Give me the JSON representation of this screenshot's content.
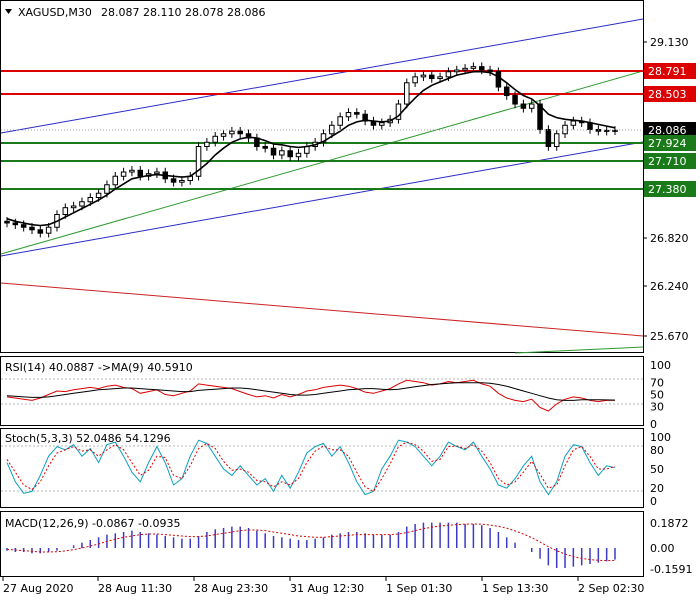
{
  "header": {
    "symbol": "XAGUSD,M30",
    "ohlc": "28.087 28.110 28.078 28.086"
  },
  "colors": {
    "channel_blue": "#2a2ac8",
    "channel_green": "#2e9a2e",
    "channel_red": "#cc2222",
    "resistance": "#dd0000",
    "support": "#1a7a1a",
    "price_tag_bg": "#000000",
    "candle": "#000000",
    "ma": "#000000",
    "rsi": "#dd0000",
    "stoch_main": "#0aa0c0",
    "stoch_signal": "#dd0000",
    "macd_hist": "#3a3ac8",
    "macd_signal": "#dd0000"
  },
  "chart_data": [
    {
      "type": "candlestick",
      "title": "XAGUSD,M30",
      "ylim": [
        25.55,
        29.35
      ],
      "y_ticks": [
        "29.130",
        "28.5",
        "28.086",
        "26.820",
        "26.240",
        "25.670"
      ],
      "x_tick_labels": [
        "27 Aug 2020",
        "28 Aug 11:30",
        "28 Aug 23:30",
        "31 Aug 12:30",
        "1 Sep 01:30",
        "1 Sep 13:30",
        "2 Sep 02:30"
      ],
      "current_price": "28.086",
      "horizontal_levels": [
        {
          "value": 28.791,
          "label": "28.791",
          "kind": "resistance"
        },
        {
          "value": 28.503,
          "label": "28.503",
          "kind": "resistance"
        },
        {
          "value": 27.924,
          "label": "27.924",
          "kind": "support"
        },
        {
          "value": 27.71,
          "label": "27.710",
          "kind": "support"
        },
        {
          "value": 27.38,
          "label": "27.380",
          "kind": "support"
        }
      ],
      "close_series": [
        27.0,
        26.98,
        26.95,
        26.92,
        26.88,
        26.95,
        27.1,
        27.18,
        27.2,
        27.25,
        27.3,
        27.35,
        27.45,
        27.55,
        27.6,
        27.62,
        27.55,
        27.58,
        27.6,
        27.52,
        27.48,
        27.5,
        27.55,
        27.9,
        27.95,
        28.02,
        28.05,
        28.08,
        28.05,
        28.0,
        27.9,
        27.88,
        27.8,
        27.85,
        27.78,
        27.82,
        27.9,
        27.95,
        28.05,
        28.15,
        28.25,
        28.3,
        28.28,
        28.2,
        28.15,
        28.18,
        28.22,
        28.4,
        28.65,
        28.72,
        28.74,
        28.7,
        28.72,
        28.78,
        28.8,
        28.82,
        28.84,
        28.8,
        28.78,
        28.6,
        28.5,
        28.4,
        28.35,
        28.4,
        28.1,
        27.9,
        28.05,
        28.15,
        28.2,
        28.18,
        28.1,
        28.08,
        28.09,
        28.086
      ],
      "series": [
        {
          "name": "MA",
          "values": [
            27.05,
            27.02,
            27.0,
            26.98,
            26.97,
            26.98,
            27.02,
            27.07,
            27.12,
            27.17,
            27.22,
            27.27,
            27.33,
            27.4,
            27.46,
            27.52,
            27.54,
            27.56,
            27.57,
            27.56,
            27.55,
            27.54,
            27.55,
            27.62,
            27.7,
            27.8,
            27.88,
            27.95,
            27.99,
            28.01,
            28.0,
            27.97,
            27.93,
            27.92,
            27.9,
            27.89,
            27.9,
            27.92,
            27.96,
            28.02,
            28.08,
            28.15,
            28.19,
            28.21,
            28.2,
            28.19,
            28.2,
            28.26,
            28.37,
            28.47,
            28.56,
            28.62,
            28.66,
            28.7,
            28.74,
            28.76,
            28.78,
            28.78,
            28.77,
            28.72,
            28.65,
            28.57,
            28.5,
            28.46,
            28.38,
            28.28,
            28.24,
            28.22,
            28.21,
            28.2,
            28.18,
            28.16,
            28.14,
            28.12
          ]
        }
      ]
    },
    {
      "type": "line",
      "title": "RSI(14) 40.0887  ->MA(9) 40.5910",
      "ylim": [
        0,
        100
      ],
      "y_ticks": [
        "100",
        "70",
        "50",
        "30",
        "0"
      ],
      "series": [
        {
          "name": "RSI(14)",
          "values": [
            46,
            44,
            42,
            40,
            44,
            50,
            56,
            55,
            58,
            60,
            62,
            60,
            64,
            66,
            62,
            60,
            52,
            55,
            58,
            50,
            48,
            52,
            56,
            68,
            66,
            64,
            62,
            60,
            55,
            50,
            46,
            48,
            44,
            50,
            46,
            50,
            56,
            58,
            62,
            64,
            66,
            64,
            60,
            54,
            52,
            56,
            60,
            68,
            74,
            72,
            70,
            66,
            68,
            72,
            70,
            72,
            74,
            68,
            64,
            52,
            44,
            40,
            38,
            42,
            28,
            22,
            34,
            42,
            46,
            44,
            40,
            38,
            40,
            40.09
          ]
        },
        {
          "name": "MA(9)",
          "values": [
            48,
            47,
            46,
            45,
            45,
            46,
            48,
            50,
            52,
            54,
            56,
            58,
            59,
            60,
            61,
            61,
            60,
            59,
            58,
            57,
            56,
            55,
            55,
            57,
            58,
            59,
            60,
            61,
            61,
            60,
            58,
            56,
            54,
            52,
            50,
            49,
            49,
            50,
            52,
            54,
            56,
            58,
            59,
            60,
            60,
            59,
            58,
            59,
            61,
            63,
            65,
            67,
            68,
            69,
            70,
            70,
            70,
            70,
            69,
            67,
            64,
            60,
            56,
            52,
            48,
            44,
            41,
            40,
            40,
            41,
            41,
            41,
            40.8,
            40.59
          ]
        }
      ]
    },
    {
      "type": "line",
      "title": "Stoch(5,3,3) 52.0486 54.1296",
      "ylim": [
        0,
        100
      ],
      "y_ticks": [
        "100",
        "80",
        "50",
        "20",
        "0"
      ],
      "series": [
        {
          "name": "Main",
          "values": [
            60,
            30,
            12,
            15,
            40,
            70,
            85,
            80,
            88,
            70,
            82,
            60,
            88,
            92,
            70,
            45,
            30,
            60,
            85,
            60,
            25,
            35,
            70,
            95,
            90,
            70,
            50,
            40,
            55,
            40,
            25,
            35,
            15,
            40,
            20,
            45,
            75,
            85,
            90,
            70,
            85,
            60,
            30,
            10,
            15,
            50,
            70,
            95,
            92,
            85,
            70,
            55,
            70,
            92,
            85,
            80,
            92,
            70,
            50,
            25,
            20,
            35,
            55,
            70,
            30,
            10,
            30,
            70,
            88,
            85,
            60,
            40,
            55,
            52.05
          ]
        },
        {
          "name": "Signal",
          "values": [
            65,
            45,
            25,
            18,
            30,
            55,
            75,
            80,
            85,
            78,
            80,
            70,
            80,
            88,
            80,
            60,
            40,
            48,
            70,
            68,
            40,
            35,
            55,
            82,
            90,
            82,
            62,
            48,
            50,
            45,
            32,
            30,
            22,
            30,
            25,
            35,
            60,
            78,
            86,
            80,
            80,
            70,
            45,
            22,
            15,
            35,
            58,
            85,
            92,
            88,
            78,
            62,
            65,
            85,
            86,
            82,
            88,
            78,
            60,
            35,
            25,
            30,
            45,
            62,
            42,
            20,
            25,
            55,
            80,
            85,
            70,
            50,
            50,
            54.13
          ]
        }
      ]
    },
    {
      "type": "bar",
      "title": "MACD(12,26,9) -0.0867 -0.0935",
      "ylim": [
        -0.2,
        0.21
      ],
      "y_ticks": [
        "0.1872",
        "0.00",
        "-0.1591"
      ],
      "series": [
        {
          "name": "MACD",
          "values": [
            -0.02,
            -0.03,
            -0.03,
            -0.04,
            -0.04,
            -0.03,
            -0.02,
            0.0,
            0.02,
            0.04,
            0.06,
            0.08,
            0.1,
            0.11,
            0.12,
            0.13,
            0.12,
            0.11,
            0.1,
            0.09,
            0.08,
            0.07,
            0.07,
            0.09,
            0.12,
            0.14,
            0.15,
            0.16,
            0.16,
            0.15,
            0.13,
            0.11,
            0.09,
            0.08,
            0.07,
            0.06,
            0.06,
            0.07,
            0.08,
            0.1,
            0.11,
            0.12,
            0.12,
            0.11,
            0.1,
            0.1,
            0.1,
            0.12,
            0.16,
            0.18,
            0.19,
            0.19,
            0.19,
            0.19,
            0.19,
            0.18,
            0.18,
            0.17,
            0.15,
            0.12,
            0.08,
            0.04,
            0.0,
            -0.03,
            -0.08,
            -0.13,
            -0.15,
            -0.15,
            -0.14,
            -0.13,
            -0.12,
            -0.11,
            -0.1,
            -0.087
          ]
        },
        {
          "name": "Signal",
          "values": [
            -0.01,
            -0.015,
            -0.02,
            -0.025,
            -0.03,
            -0.03,
            -0.028,
            -0.022,
            -0.012,
            0.0,
            0.015,
            0.03,
            0.05,
            0.065,
            0.08,
            0.09,
            0.1,
            0.105,
            0.105,
            0.1,
            0.095,
            0.09,
            0.085,
            0.085,
            0.09,
            0.1,
            0.11,
            0.12,
            0.13,
            0.135,
            0.135,
            0.13,
            0.12,
            0.11,
            0.1,
            0.09,
            0.085,
            0.08,
            0.08,
            0.085,
            0.09,
            0.095,
            0.1,
            0.1,
            0.1,
            0.1,
            0.1,
            0.105,
            0.115,
            0.13,
            0.145,
            0.155,
            0.165,
            0.17,
            0.175,
            0.178,
            0.18,
            0.178,
            0.172,
            0.162,
            0.148,
            0.128,
            0.104,
            0.078,
            0.046,
            0.01,
            -0.02,
            -0.045,
            -0.065,
            -0.078,
            -0.087,
            -0.092,
            -0.094,
            -0.0935
          ]
        }
      ]
    }
  ]
}
